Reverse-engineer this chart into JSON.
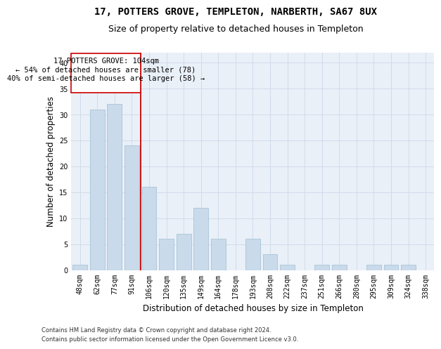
{
  "title": "17, POTTERS GROVE, TEMPLETON, NARBERTH, SA67 8UX",
  "subtitle": "Size of property relative to detached houses in Templeton",
  "xlabel": "Distribution of detached houses by size in Templeton",
  "ylabel": "Number of detached properties",
  "categories": [
    "48sqm",
    "62sqm",
    "77sqm",
    "91sqm",
    "106sqm",
    "120sqm",
    "135sqm",
    "149sqm",
    "164sqm",
    "178sqm",
    "193sqm",
    "208sqm",
    "222sqm",
    "237sqm",
    "251sqm",
    "266sqm",
    "280sqm",
    "295sqm",
    "309sqm",
    "324sqm",
    "338sqm"
  ],
  "values": [
    1,
    31,
    32,
    24,
    16,
    6,
    7,
    12,
    6,
    0,
    6,
    3,
    1,
    0,
    1,
    1,
    0,
    1,
    1,
    1,
    0
  ],
  "bar_color": "#c9daea",
  "bar_edge_color": "#a8c4d8",
  "vline_x": 3.5,
  "vline_color": "#cc0000",
  "annotation_line1": "17 POTTERS GROVE: 104sqm",
  "annotation_line2": "← 54% of detached houses are smaller (78)",
  "annotation_line3": "40% of semi-detached houses are larger (58) →",
  "annotation_box_color": "#ffffff",
  "annotation_box_edge_color": "#cc0000",
  "ylim": [
    0,
    42
  ],
  "yticks": [
    0,
    5,
    10,
    15,
    20,
    25,
    30,
    35,
    40
  ],
  "grid_color": "#d0dcea",
  "background_color": "#eaf0f8",
  "footer_line1": "Contains HM Land Registry data © Crown copyright and database right 2024.",
  "footer_line2": "Contains public sector information licensed under the Open Government Licence v3.0.",
  "title_fontsize": 10,
  "subtitle_fontsize": 9,
  "tick_fontsize": 7,
  "ylabel_fontsize": 8.5,
  "xlabel_fontsize": 8.5,
  "annotation_fontsize": 7.5,
  "footer_fontsize": 6
}
